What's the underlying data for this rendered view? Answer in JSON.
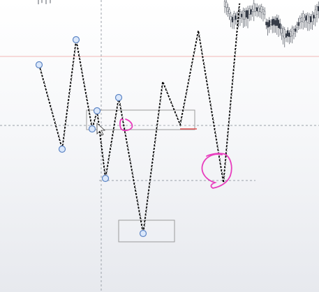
{
  "chart": {
    "type": "line",
    "theme": "light",
    "colors": {
      "pattern_line": "#000000",
      "anchor_fill": "#dbe8fb",
      "anchor_stroke": "#5b84c4",
      "annotation": "#e83dbd",
      "reference_line": "#f2b6b6",
      "crosshair": "#9aa0a8",
      "selection_box": "#9a9a9a",
      "candle": "#2e3440"
    },
    "icons": [
      "cursor-arrow-icon"
    ]
  }
}
